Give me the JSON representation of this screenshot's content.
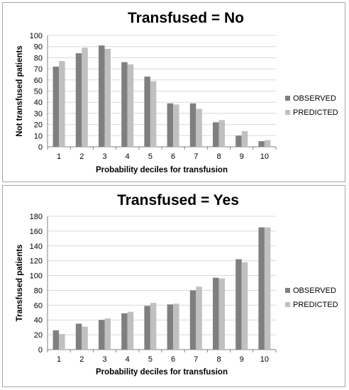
{
  "colors": {
    "observed": "#7f7f7f",
    "predicted": "#c0c0c0",
    "grid": "#d9d9d9",
    "axis": "#808080"
  },
  "chart_data": [
    {
      "type": "bar",
      "title": "Transfused = No",
      "xlabel": "Probability deciles for transfusion",
      "ylabel": "Not transfused patients",
      "categories": [
        "1",
        "2",
        "3",
        "4",
        "5",
        "6",
        "7",
        "8",
        "9",
        "10"
      ],
      "ylim": [
        0,
        100
      ],
      "yticks": [
        0,
        10,
        20,
        30,
        40,
        50,
        60,
        70,
        80,
        90,
        100
      ],
      "grid": true,
      "legend_position": "right",
      "series": [
        {
          "name": "OBSERVED",
          "values": [
            72,
            84,
            91,
            76,
            63,
            39,
            39,
            22,
            10,
            5
          ]
        },
        {
          "name": "PREDICTED",
          "values": [
            77,
            89,
            88,
            74,
            59,
            38,
            34,
            24,
            14,
            6
          ]
        }
      ]
    },
    {
      "type": "bar",
      "title": "Transfused = Yes",
      "xlabel": "Probability deciles for transfusion",
      "ylabel": "Transfused patients",
      "categories": [
        "1",
        "2",
        "3",
        "4",
        "5",
        "6",
        "7",
        "8",
        "9",
        "10"
      ],
      "ylim": [
        0,
        180
      ],
      "yticks": [
        0,
        20,
        40,
        60,
        80,
        100,
        120,
        140,
        160,
        180
      ],
      "grid": true,
      "legend_position": "right",
      "series": [
        {
          "name": "OBSERVED",
          "values": [
            26,
            35,
            40,
            49,
            59,
            61,
            80,
            97,
            122,
            165
          ]
        },
        {
          "name": "PREDICTED",
          "values": [
            21,
            31,
            42,
            51,
            63,
            62,
            85,
            96,
            118,
            165
          ]
        }
      ]
    }
  ]
}
